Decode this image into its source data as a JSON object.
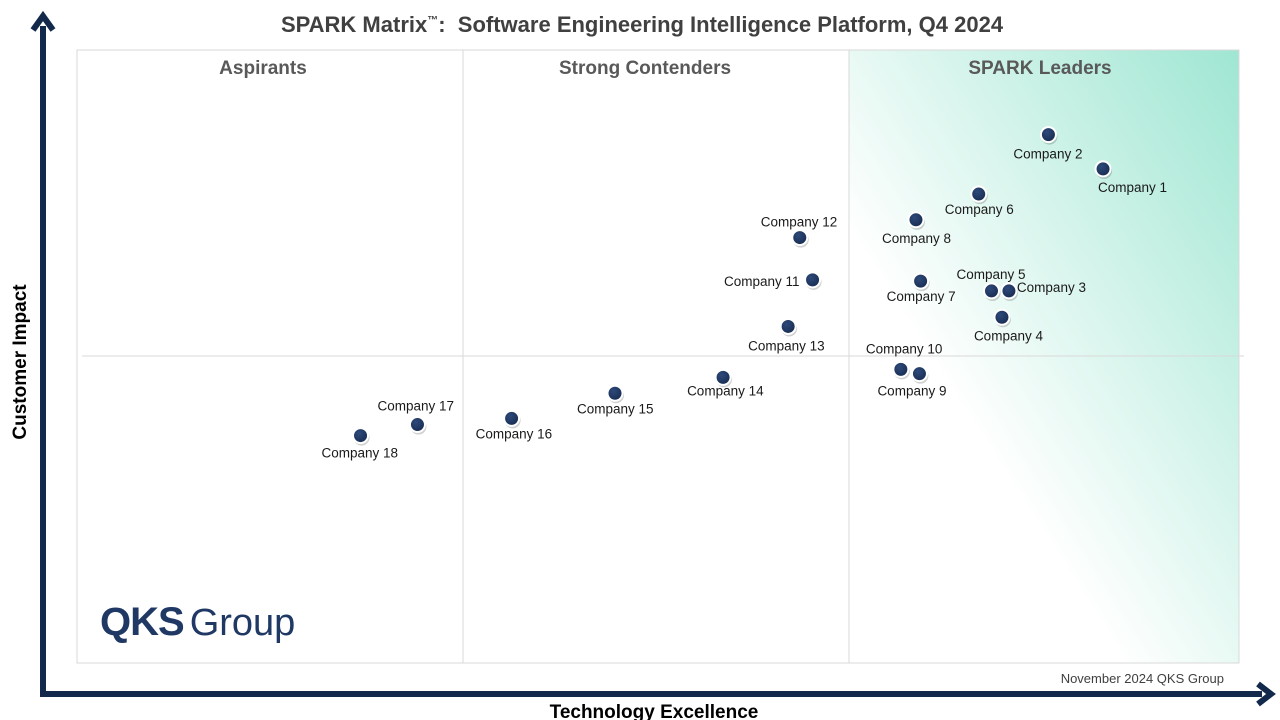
{
  "title": {
    "main": "SPARK Matrix",
    "tm": "™",
    "rest": "Software Engineering Intelligence Platform, Q4 2024"
  },
  "quadrants": [
    "Aspirants",
    "Strong Contenders",
    "SPARK Leaders"
  ],
  "footer": "November 2024 QKS Group",
  "logo": {
    "bold": "QKS",
    "light": "Group"
  },
  "colors": {
    "axis": "#13294b",
    "dot": "#1f3864",
    "leader_gradient": "#9fe6d2",
    "grid": "#d9d9d9",
    "logo": "#1f3864"
  },
  "chart_data": {
    "type": "scatter",
    "title": "SPARK Matrix™: Software Engineering Intelligence Platform, Q4 2024",
    "xlabel": "Technology Excellence",
    "ylabel": "Customer Impact",
    "xlim": [
      0,
      100
    ],
    "ylim": [
      0,
      100
    ],
    "grid": false,
    "points": [
      {
        "label": "Company 1",
        "x": 88.3,
        "y": 80.6
      },
      {
        "label": "Company 2",
        "x": 83.6,
        "y": 86.2
      },
      {
        "label": "Company 3",
        "x": 80.2,
        "y": 60.7
      },
      {
        "label": "Company 4",
        "x": 79.6,
        "y": 56.4
      },
      {
        "label": "Company 5",
        "x": 78.7,
        "y": 60.7
      },
      {
        "label": "Company 6",
        "x": 77.6,
        "y": 76.5
      },
      {
        "label": "Company 7",
        "x": 72.6,
        "y": 62.3
      },
      {
        "label": "Company 8",
        "x": 72.2,
        "y": 72.3
      },
      {
        "label": "Company 9",
        "x": 72.5,
        "y": 47.2
      },
      {
        "label": "Company 10",
        "x": 70.9,
        "y": 47.9
      },
      {
        "label": "Company 11",
        "x": 63.3,
        "y": 62.5
      },
      {
        "label": "Company 12",
        "x": 62.2,
        "y": 69.4
      },
      {
        "label": "Company 13",
        "x": 61.2,
        "y": 54.9
      },
      {
        "label": "Company 14",
        "x": 55.6,
        "y": 46.6
      },
      {
        "label": "Company 15",
        "x": 46.3,
        "y": 44.0
      },
      {
        "label": "Company 16",
        "x": 37.4,
        "y": 39.9
      },
      {
        "label": "Company 17",
        "x": 29.3,
        "y": 38.9
      },
      {
        "label": "Company 18",
        "x": 24.4,
        "y": 37.1
      }
    ]
  }
}
